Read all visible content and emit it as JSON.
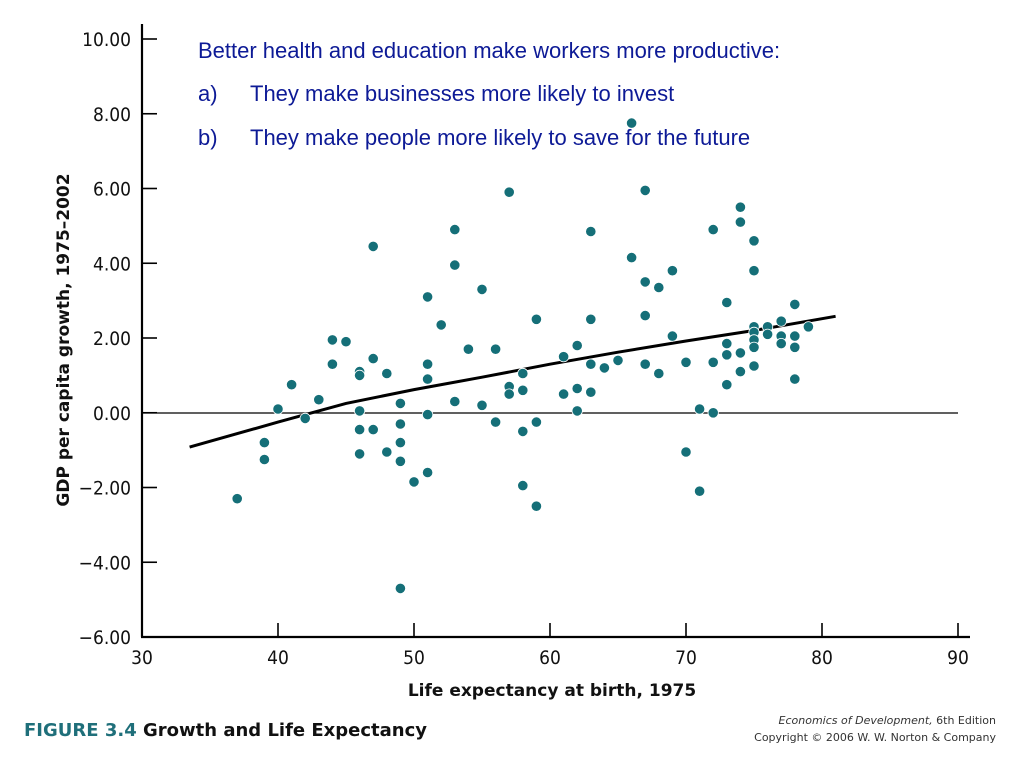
{
  "header": {
    "intro": "Better health and education make workers more productive:",
    "points": [
      {
        "marker": "a)",
        "text": "They make businesses more likely to invest"
      },
      {
        "marker": "b)",
        "text": "They make people more likely to save for the future"
      }
    ]
  },
  "figure": {
    "label_prefix": "FIGURE",
    "label_number": "3.4",
    "title": "Growth and Life Expectancy"
  },
  "credit": {
    "book_title": "Economics of Development,",
    "edition": "6th Edition",
    "copyright": "Copyright © 2006 W. W. Norton & Company"
  },
  "colors": {
    "text_accent": "#0d1a96",
    "dot": "#156f78",
    "figure_label": "#1f6f7a"
  },
  "chart_data": {
    "type": "scatter",
    "xlabel": "Life expectancy at birth, 1975",
    "ylabel": "GDP per capita growth, 1975–2002",
    "xlim": [
      30,
      90
    ],
    "ylim": [
      -6,
      10
    ],
    "x_ticks": [
      "30",
      "40",
      "50",
      "60",
      "70",
      "80",
      "90"
    ],
    "y_ticks": [
      "10.00",
      "8.00",
      "6.00",
      "4.00",
      "2.00",
      "0.00",
      "−2.00",
      "−4.00",
      "−6.00"
    ],
    "zero_line": true,
    "grid": false,
    "points": [
      [
        37,
        -2.3
      ],
      [
        39,
        -0.8
      ],
      [
        39,
        -1.25
      ],
      [
        40,
        0.1
      ],
      [
        41,
        0.75
      ],
      [
        42,
        -0.15
      ],
      [
        43,
        0.35
      ],
      [
        44,
        1.95
      ],
      [
        44,
        1.3
      ],
      [
        45,
        1.9
      ],
      [
        46,
        1.1
      ],
      [
        46,
        1.0
      ],
      [
        46,
        0.05
      ],
      [
        46,
        -0.45
      ],
      [
        46,
        -1.1
      ],
      [
        47,
        4.45
      ],
      [
        47,
        1.45
      ],
      [
        47,
        -0.45
      ],
      [
        48,
        1.05
      ],
      [
        48,
        -1.05
      ],
      [
        49,
        0.25
      ],
      [
        49,
        -0.3
      ],
      [
        49,
        -0.8
      ],
      [
        49,
        -1.3
      ],
      [
        49,
        -4.7
      ],
      [
        50,
        -1.85
      ],
      [
        51,
        3.1
      ],
      [
        51,
        1.3
      ],
      [
        51,
        0.9
      ],
      [
        51,
        -0.05
      ],
      [
        51,
        -1.6
      ],
      [
        52,
        2.35
      ],
      [
        53,
        4.9
      ],
      [
        53,
        3.95
      ],
      [
        53,
        0.3
      ],
      [
        54,
        1.7
      ],
      [
        55,
        3.3
      ],
      [
        55,
        0.2
      ],
      [
        56,
        1.7
      ],
      [
        56,
        -0.25
      ],
      [
        57,
        5.9
      ],
      [
        57,
        0.7
      ],
      [
        57,
        0.5
      ],
      [
        58,
        1.05
      ],
      [
        58,
        0.6
      ],
      [
        58,
        -0.5
      ],
      [
        58,
        -1.95
      ],
      [
        59,
        2.5
      ],
      [
        59,
        -0.25
      ],
      [
        59,
        -2.5
      ],
      [
        61,
        1.5
      ],
      [
        61,
        0.5
      ],
      [
        62,
        1.8
      ],
      [
        62,
        0.65
      ],
      [
        62,
        0.05
      ],
      [
        63,
        4.85
      ],
      [
        63,
        2.5
      ],
      [
        63,
        1.3
      ],
      [
        63,
        0.55
      ],
      [
        64,
        1.2
      ],
      [
        65,
        1.4
      ],
      [
        66,
        7.75
      ],
      [
        66,
        4.15
      ],
      [
        67,
        5.95
      ],
      [
        67,
        3.5
      ],
      [
        67,
        2.6
      ],
      [
        67,
        1.3
      ],
      [
        68,
        3.35
      ],
      [
        68,
        1.05
      ],
      [
        69,
        3.8
      ],
      [
        69,
        2.05
      ],
      [
        70,
        1.35
      ],
      [
        70,
        -1.05
      ],
      [
        71,
        0.1
      ],
      [
        71,
        -2.1
      ],
      [
        72,
        4.9
      ],
      [
        72,
        1.35
      ],
      [
        72,
        0.0
      ],
      [
        73,
        2.95
      ],
      [
        73,
        1.85
      ],
      [
        73,
        1.55
      ],
      [
        73,
        0.75
      ],
      [
        74,
        5.5
      ],
      [
        74,
        5.1
      ],
      [
        74,
        1.6
      ],
      [
        74,
        1.1
      ],
      [
        75,
        4.6
      ],
      [
        75,
        3.8
      ],
      [
        75,
        2.3
      ],
      [
        75,
        2.15
      ],
      [
        75,
        1.95
      ],
      [
        75,
        1.75
      ],
      [
        75,
        1.25
      ],
      [
        76,
        2.3
      ],
      [
        76,
        2.1
      ],
      [
        77,
        2.45
      ],
      [
        77,
        2.05
      ],
      [
        77,
        1.85
      ],
      [
        78,
        2.9
      ],
      [
        78,
        2.05
      ],
      [
        78,
        1.75
      ],
      [
        78,
        0.9
      ],
      [
        79,
        2.3
      ]
    ],
    "fit_curve": [
      [
        33.5,
        -0.92
      ],
      [
        40,
        -0.25
      ],
      [
        45,
        0.25
      ],
      [
        50,
        0.62
      ],
      [
        55,
        0.95
      ],
      [
        60,
        1.3
      ],
      [
        65,
        1.62
      ],
      [
        70,
        1.92
      ],
      [
        75,
        2.2
      ],
      [
        81,
        2.58
      ]
    ]
  }
}
